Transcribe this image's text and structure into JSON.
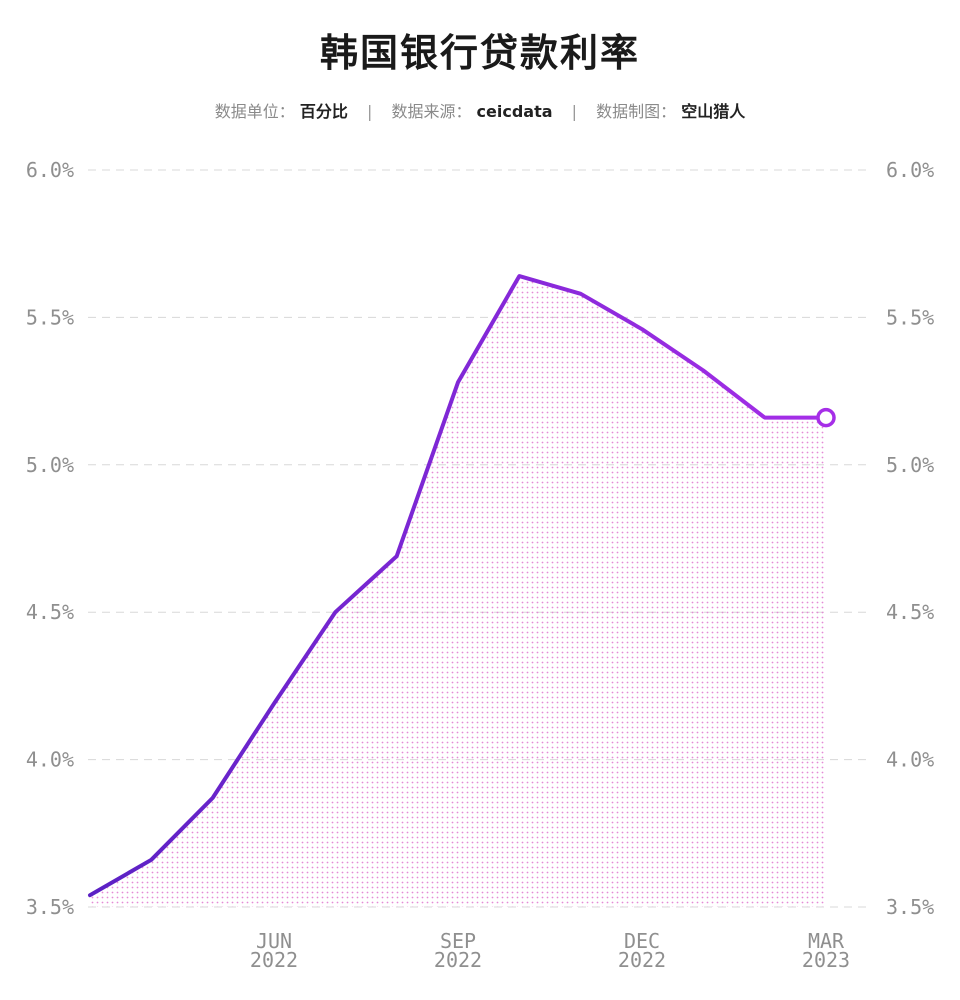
{
  "title": "韩国银行贷款利率",
  "subtitle": {
    "unit_label": "数据单位：",
    "unit_value": "百分比",
    "source_label": "数据来源：",
    "source_value": "ceicdata",
    "maker_label": "数据制图：",
    "maker_value": "空山猎人",
    "separator": "|"
  },
  "colors": {
    "line_start": "#5b21c4",
    "line_end": "#a62ee8",
    "fill_dots": "#e58ad6",
    "grid": "#d8d8d8",
    "tick_text": "#8f8f8f"
  },
  "chart_data": {
    "type": "area",
    "title": "韩国银行贷款利率",
    "xlabel": "",
    "ylabel": "",
    "y_ticks": [
      "3.5%",
      "4.0%",
      "4.5%",
      "5.0%",
      "5.5%",
      "6.0%"
    ],
    "ylim": [
      3.5,
      6.0
    ],
    "x_ticks": [
      {
        "month": "JUN",
        "year": "2022"
      },
      {
        "month": "SEP",
        "year": "2022"
      },
      {
        "month": "DEC",
        "year": "2022"
      },
      {
        "month": "MAR",
        "year": "2023"
      }
    ],
    "x": [
      "2022-03",
      "2022-04",
      "2022-05",
      "2022-06",
      "2022-07",
      "2022-08",
      "2022-09",
      "2022-10",
      "2022-11",
      "2022-12",
      "2023-01",
      "2023-02",
      "2023-03"
    ],
    "values": [
      3.54,
      3.66,
      3.87,
      4.19,
      4.5,
      4.69,
      5.28,
      5.64,
      5.58,
      5.46,
      5.32,
      5.16,
      5.16
    ],
    "grid": true,
    "dual_y_axis": true,
    "end_marker": true
  }
}
